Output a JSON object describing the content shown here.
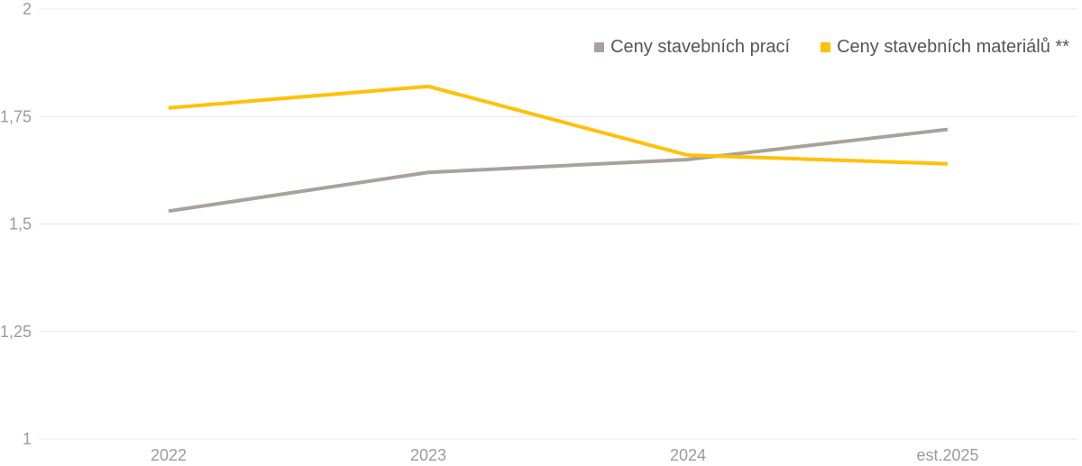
{
  "chart_data": {
    "type": "line",
    "title": "",
    "xlabel": "",
    "ylabel": "",
    "categories": [
      "2022",
      "2023",
      "2024",
      "est.2025"
    ],
    "series": [
      {
        "name": "Ceny stavebních prací",
        "color": "#a8a29b",
        "values": [
          1.53,
          1.62,
          1.65,
          1.72
        ]
      },
      {
        "name": "Ceny stavebních materiálů **",
        "color": "#ffc107",
        "values": [
          1.77,
          1.82,
          1.66,
          1.64
        ]
      }
    ],
    "ylim": [
      1,
      2
    ],
    "yticks": [
      1,
      1.25,
      1.5,
      1.75,
      2
    ],
    "ytick_labels": [
      "1",
      "1,25",
      "1,5",
      "1,75",
      "2"
    ],
    "grid": true,
    "legend_position": "top-right",
    "line_width": 4,
    "colors": {
      "grid": "#e7e7e7",
      "axis_text": "#9b9b9b",
      "legend_text": "#555555",
      "background": "#ffffff"
    }
  }
}
